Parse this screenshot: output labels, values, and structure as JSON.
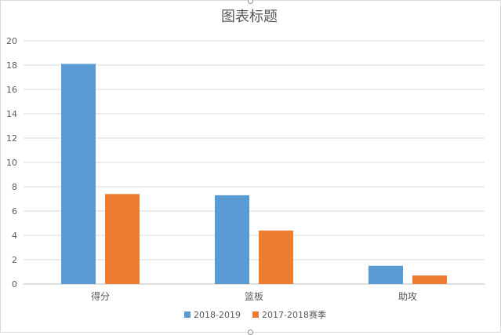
{
  "chart_data": {
    "type": "bar",
    "title": "图表标题",
    "categories": [
      "得分",
      "篮板",
      "助攻"
    ],
    "series": [
      {
        "name": "2018-2019",
        "color": "#5b9bd5",
        "values": [
          18.1,
          7.3,
          1.5
        ]
      },
      {
        "name": "2017-2018赛季",
        "color": "#ed7d31",
        "values": [
          7.4,
          4.4,
          0.7
        ]
      }
    ],
    "ylim": [
      0,
      20
    ],
    "yticks": [
      0,
      2,
      4,
      6,
      8,
      10,
      12,
      14,
      16,
      18,
      20
    ],
    "grid": true,
    "legend_position": "bottom"
  }
}
